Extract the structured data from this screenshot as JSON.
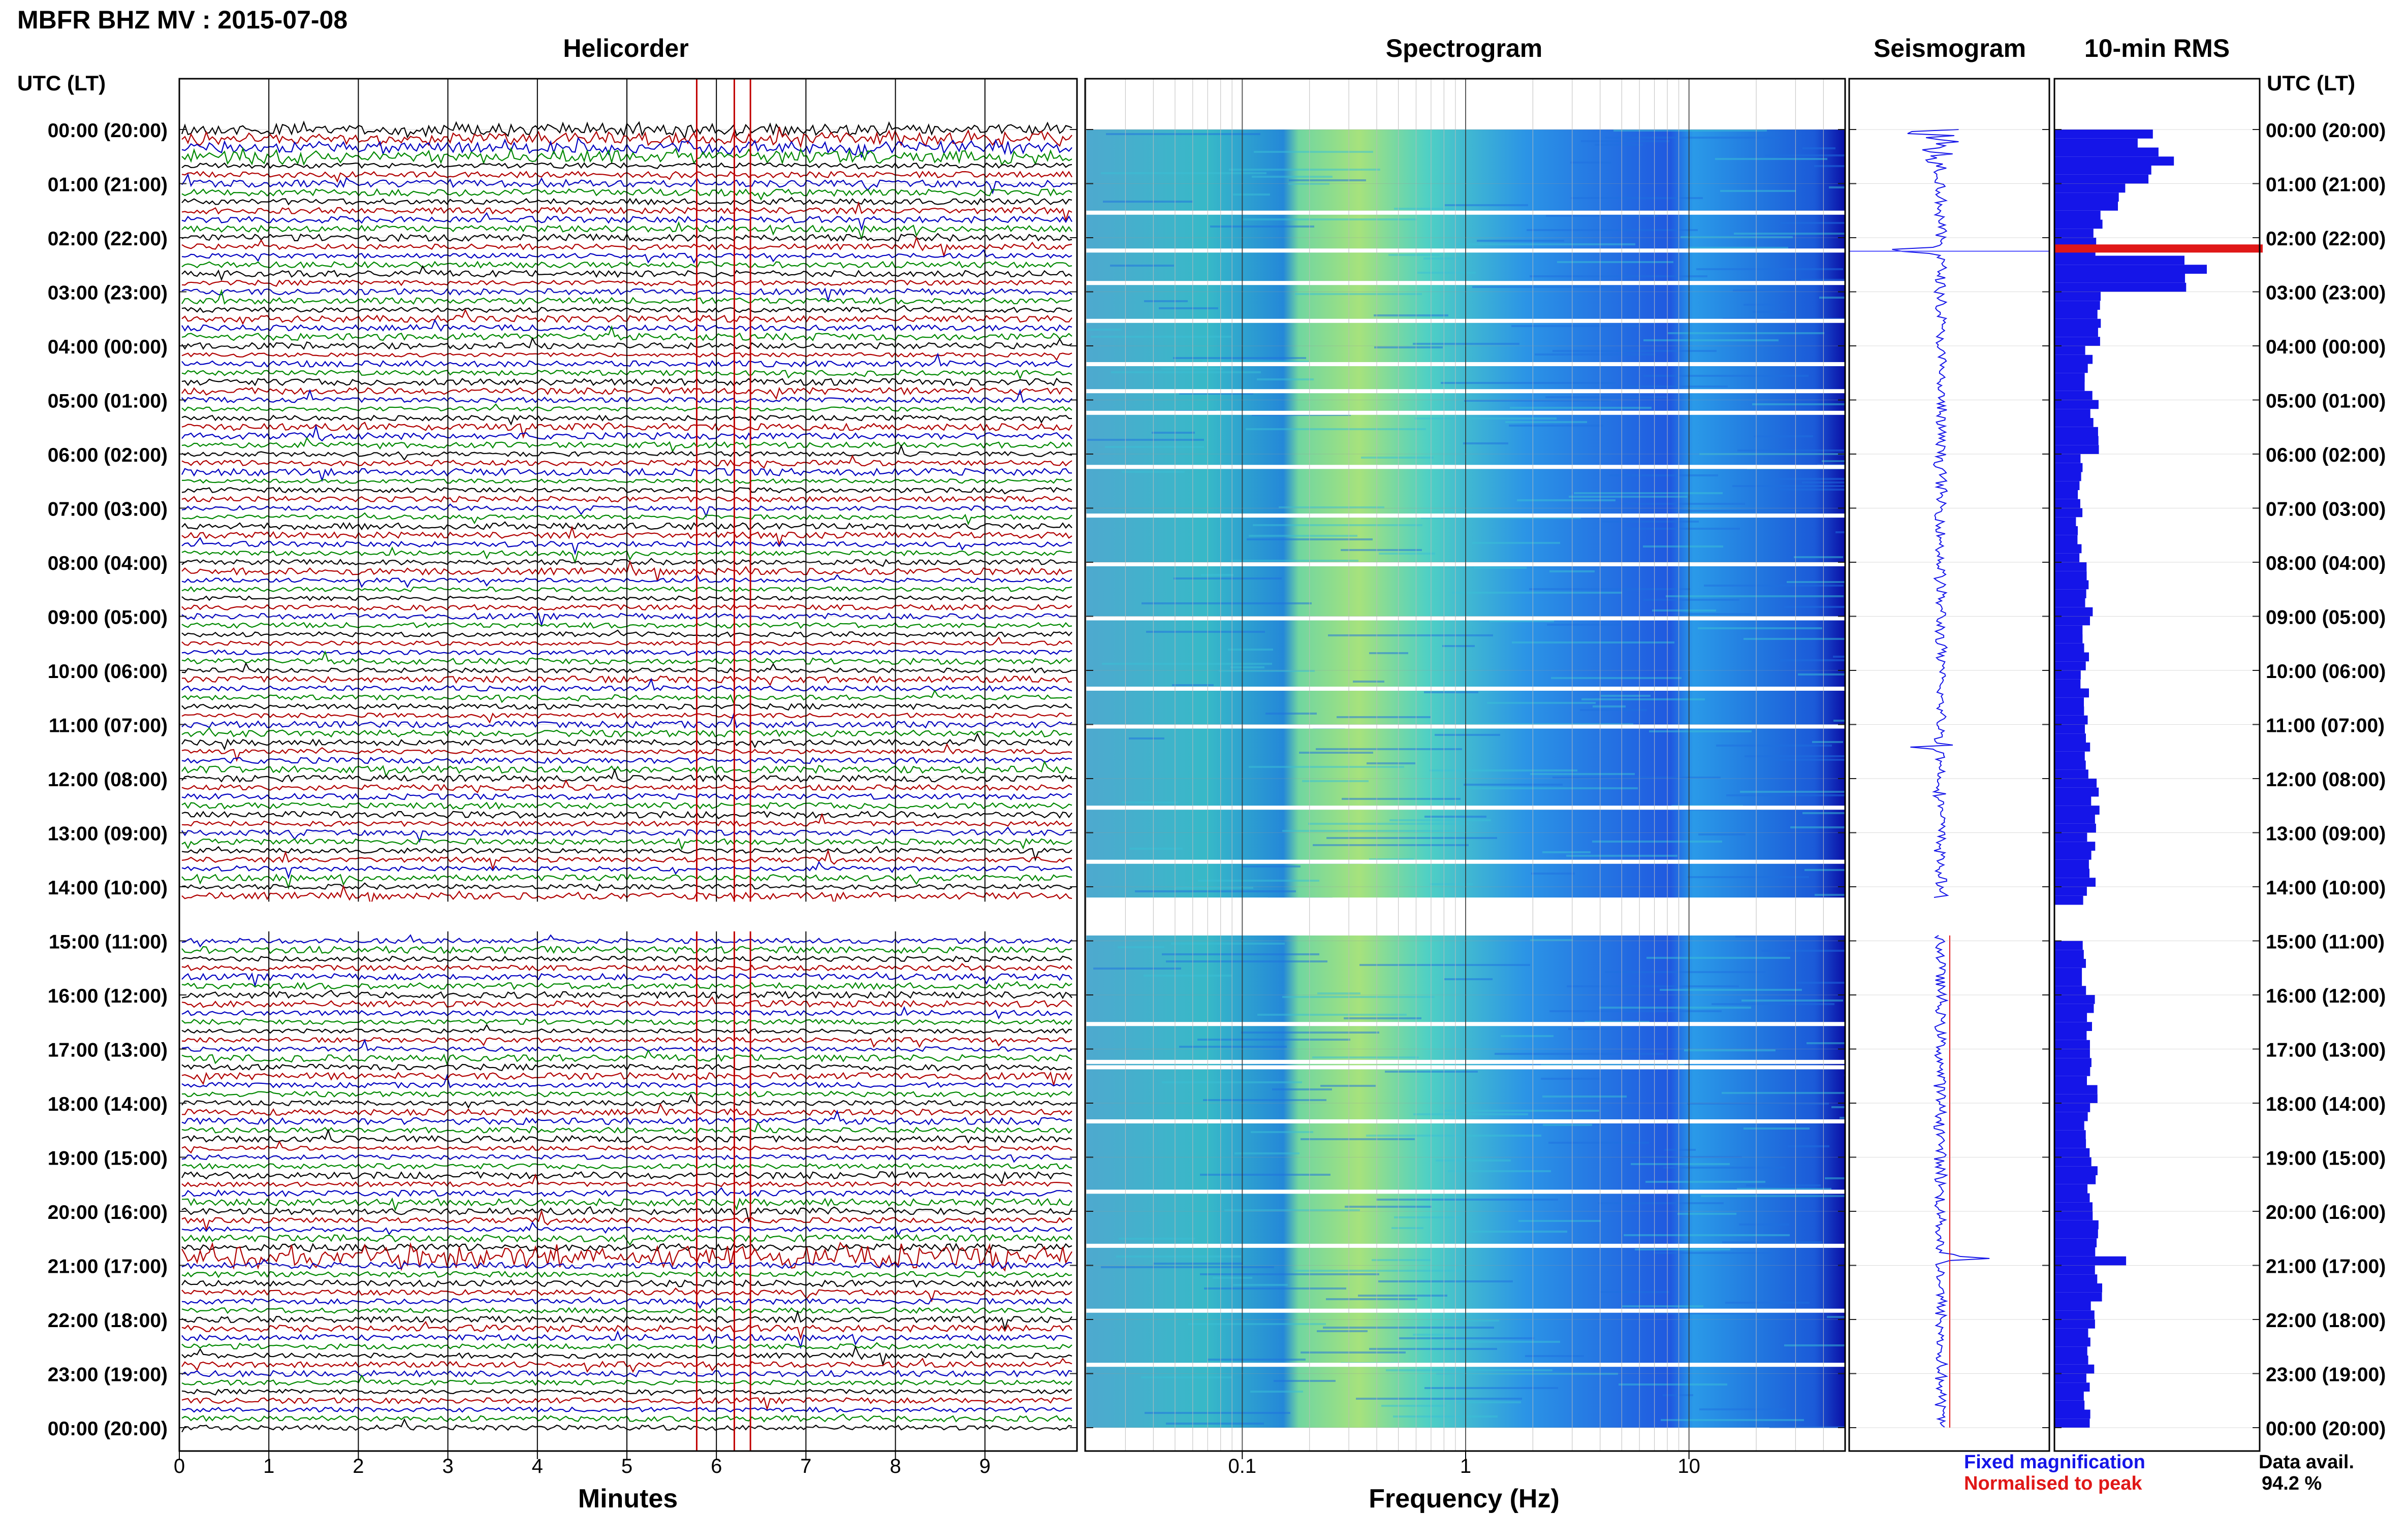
{
  "title": "MBFR BHZ MV : 2015-07-08",
  "utc_header": "UTC (LT)",
  "panels": {
    "helicorder": "Helicorder",
    "spectrogram": "Spectrogram",
    "seismogram": "Seismogram",
    "rms": "10-min RMS"
  },
  "legend": {
    "fixed": "Fixed magnification",
    "normalised": "Normalised to peak",
    "fixed_color": "#1515e8",
    "normalised_color": "#e01818"
  },
  "availability": {
    "label": "Data avail.",
    "value": "94.2 %"
  },
  "trace_colors": [
    "#000000",
    "#b00000",
    "#0000c0",
    "#008800"
  ],
  "chart_data": [
    {
      "type": "line",
      "name": "Helicorder",
      "xlabel": "Minutes",
      "ylabel": "UTC (LT)",
      "x_ticks": [
        0,
        1,
        2,
        3,
        4,
        5,
        6,
        7,
        8,
        9
      ],
      "xlim": [
        0,
        10
      ],
      "hour_labels": [
        "00:00 (20:00)",
        "01:00 (21:00)",
        "02:00 (22:00)",
        "03:00 (23:00)",
        "04:00 (00:00)",
        "05:00 (01:00)",
        "06:00 (02:00)",
        "07:00 (03:00)",
        "08:00 (04:00)",
        "09:00 (05:00)",
        "10:00 (06:00)",
        "11:00 (07:00)",
        "12:00 (08:00)",
        "13:00 (09:00)",
        "14:00 (10:00)",
        "15:00 (11:00)",
        "16:00 (12:00)",
        "17:00 (13:00)",
        "18:00 (14:00)",
        "19:00 (15:00)",
        "20:00 (16:00)",
        "21:00 (17:00)",
        "22:00 (18:00)",
        "23:00 (19:00)",
        "00:00 (20:00)"
      ],
      "lines_per_hour": 6,
      "gap_hours": [
        14.2,
        14.9
      ],
      "red_markers_min": [
        5.78,
        6.2,
        6.38
      ]
    },
    {
      "type": "heatmap",
      "name": "Spectrogram",
      "xlabel": "Frequency (Hz)",
      "x_scale": "log",
      "xlim": [
        0.02,
        50
      ],
      "x_ticks": [
        0.1,
        1,
        10
      ],
      "tick_labels": [
        "0.1",
        "1",
        "10"
      ],
      "white_gap_hours": [
        1.5,
        2.2,
        2.8,
        3.5,
        4.3,
        4.8,
        5.2,
        6.2,
        7.1,
        8.0,
        9.0,
        10.3,
        11.0,
        12.5,
        13.5,
        16.5,
        17.2,
        17.3,
        18.3,
        19.6,
        20.6,
        21.8,
        22.8
      ]
    },
    {
      "type": "line",
      "name": "Seismogram",
      "events_hours": [
        {
          "hour": 2.25,
          "amp": 0.95
        },
        {
          "hour": 11.4,
          "amp": 0.4
        },
        {
          "hour": 20.85,
          "amp": 0.85
        }
      ]
    },
    {
      "type": "bar",
      "name": "10-min RMS",
      "orientation": "horizontal",
      "bin_minutes": 10,
      "peak_hour": 2.2,
      "peak_color": "#e01818",
      "gap_hours": [
        14.2,
        14.9
      ],
      "values_by_hour": [
        {
          "hour": 0.0,
          "value": 0.6
        },
        {
          "hour": 0.5,
          "value": 0.72
        },
        {
          "hour": 1.0,
          "value": 0.45
        },
        {
          "hour": 1.5,
          "value": 0.3
        },
        {
          "hour": 2.2,
          "value": 1.0
        },
        {
          "hour": 3.0,
          "value": 0.28
        },
        {
          "hour": 4.0,
          "value": 0.22
        },
        {
          "hour": 5.0,
          "value": 0.26
        },
        {
          "hour": 6.0,
          "value": 0.18
        },
        {
          "hour": 7.0,
          "value": 0.16
        },
        {
          "hour": 8.0,
          "value": 0.22
        },
        {
          "hour": 9.0,
          "value": 0.21
        },
        {
          "hour": 10.0,
          "value": 0.2
        },
        {
          "hour": 11.0,
          "value": 0.22
        },
        {
          "hour": 12.0,
          "value": 0.26
        },
        {
          "hour": 13.0,
          "value": 0.25
        },
        {
          "hour": 14.0,
          "value": 0.22
        },
        {
          "hour": 15.0,
          "value": 0.2
        },
        {
          "hour": 16.0,
          "value": 0.24
        },
        {
          "hour": 17.0,
          "value": 0.25
        },
        {
          "hour": 18.0,
          "value": 0.22
        },
        {
          "hour": 19.0,
          "value": 0.25
        },
        {
          "hour": 20.0,
          "value": 0.26
        },
        {
          "hour": 20.8,
          "value": 0.51
        },
        {
          "hour": 21.0,
          "value": 0.28
        },
        {
          "hour": 22.0,
          "value": 0.25
        },
        {
          "hour": 23.0,
          "value": 0.22
        }
      ]
    }
  ]
}
